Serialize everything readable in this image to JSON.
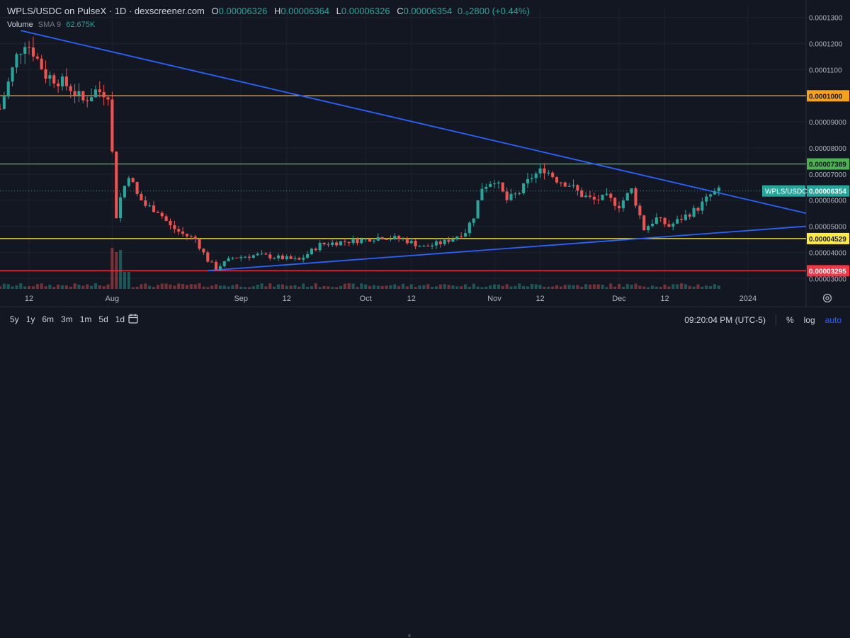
{
  "header": {
    "symbol": "WPLS/USDC on PulseX · 1D · dexscreener.com",
    "open_label": "O",
    "open": "0.00006326",
    "high_label": "H",
    "high": "0.00006364",
    "low_label": "L",
    "low": "0.00006326",
    "close_label": "C",
    "close": "0.00006354",
    "change": "0.₀2800 (+0.44%)"
  },
  "volume_legend": {
    "label": "Volume",
    "sma": "SMA 9",
    "value": "62.675K"
  },
  "price_tag": {
    "label": "WPLS/USDC",
    "value": "0.00006354",
    "color": "#26a69a"
  },
  "bottom_bar": {
    "ranges": [
      "5y",
      "1y",
      "6m",
      "3m",
      "1m",
      "5d",
      "1d"
    ],
    "time": "09:20:04 PM (UTC-5)",
    "percent": "%",
    "log": "log",
    "auto": "auto"
  },
  "colors": {
    "up": "#26a69a",
    "down": "#ef5350",
    "trendline": "#2962ff",
    "background": "#131722"
  },
  "chart_data": {
    "type": "candlestick",
    "title": "WPLS/USDC on PulseX · 1D · dexscreener.com",
    "y_ticks": [
      "0.0001300",
      "0.0001200",
      "0.0001100",
      "0.0001000",
      "0.00009000",
      "0.00008000",
      "0.00007000",
      "0.00006000",
      "0.00005000",
      "0.00004000",
      "0.00003000"
    ],
    "ylim": [
      2.6e-05,
      0.000134
    ],
    "x_ticks": [
      "12",
      "Aug",
      "12",
      "Sep",
      "12",
      "Oct",
      "12",
      "Nov",
      "12",
      "Dec",
      "12",
      "2024"
    ],
    "xlim": [
      "2023-07-05",
      "2024-01-15"
    ],
    "horizontal_levels": [
      {
        "value": 0.0001,
        "label": "0.0001000",
        "color": "#f7a21b"
      },
      {
        "value": 7.389e-05,
        "label": "0.00007389",
        "color": "#4caf50"
      },
      {
        "value": 4.529e-05,
        "label": "0.00004529",
        "color": "#ffeb3b"
      },
      {
        "value": 3.295e-05,
        "label": "0.00003295",
        "color": "#f23645"
      }
    ],
    "trendlines": [
      {
        "start": [
          "2023-07-10",
          0.000125
        ],
        "end": [
          "2024-01-15",
          5.5e-05
        ],
        "color": "#2962ff"
      },
      {
        "start": [
          "2023-08-24",
          3.3e-05
        ],
        "end": [
          "2024-01-15",
          5e-05
        ],
        "color": "#2962ff"
      }
    ],
    "anchors": [
      [
        "2023-07-05",
        9.5e-05
      ],
      [
        "2023-07-07",
        0.000105
      ],
      [
        "2023-07-09",
        0.000115
      ],
      [
        "2023-07-11",
        0.000121
      ],
      [
        "2023-07-13",
        0.000117
      ],
      [
        "2023-07-16",
        0.000108
      ],
      [
        "2023-07-19",
        0.000106
      ],
      [
        "2023-07-22",
        0.000103
      ],
      [
        "2023-07-25",
        9.8e-05
      ],
      [
        "2023-07-28",
        0.000102
      ],
      [
        "2023-07-31",
        0.000101
      ],
      [
        "2023-08-01",
        7.8e-05
      ],
      [
        "2023-08-02",
        5.4e-05
      ],
      [
        "2023-08-03",
        6.1e-05
      ],
      [
        "2023-08-05",
        7e-05
      ],
      [
        "2023-08-07",
        6.2e-05
      ],
      [
        "2023-08-09",
        5.8e-05
      ],
      [
        "2023-08-12",
        5.6e-05
      ],
      [
        "2023-08-15",
        5e-05
      ],
      [
        "2023-08-18",
        4.7e-05
      ],
      [
        "2023-08-21",
        4.5e-05
      ],
      [
        "2023-08-24",
        3.7e-05
      ],
      [
        "2023-08-26",
        3.4e-05
      ],
      [
        "2023-08-30",
        3.8e-05
      ],
      [
        "2023-09-05",
        3.9e-05
      ],
      [
        "2023-09-10",
        3.8e-05
      ],
      [
        "2023-09-15",
        3.7e-05
      ],
      [
        "2023-09-20",
        4.3e-05
      ],
      [
        "2023-09-25",
        4.4e-05
      ],
      [
        "2023-10-01",
        4.5e-05
      ],
      [
        "2023-10-05",
        4.6e-05
      ],
      [
        "2023-10-10",
        4.5e-05
      ],
      [
        "2023-10-15",
        4.2e-05
      ],
      [
        "2023-10-20",
        4.4e-05
      ],
      [
        "2023-10-25",
        4.8e-05
      ],
      [
        "2023-10-27",
        5.4e-05
      ],
      [
        "2023-10-29",
        6.5e-05
      ],
      [
        "2023-11-01",
        6.8e-05
      ],
      [
        "2023-11-04",
        6e-05
      ],
      [
        "2023-11-07",
        6.3e-05
      ],
      [
        "2023-11-10",
        6.9e-05
      ],
      [
        "2023-11-13",
        7.2e-05
      ],
      [
        "2023-11-16",
        6.8e-05
      ],
      [
        "2023-11-19",
        6.6e-05
      ],
      [
        "2023-11-22",
        6.2e-05
      ],
      [
        "2023-11-25",
        6e-05
      ],
      [
        "2023-11-28",
        6.1e-05
      ],
      [
        "2023-12-01",
        5.8e-05
      ],
      [
        "2023-12-04",
        6.4e-05
      ],
      [
        "2023-12-07",
        4.9e-05
      ],
      [
        "2023-12-10",
        5.3e-05
      ],
      [
        "2023-12-13",
        5e-05
      ],
      [
        "2023-12-17",
        5.4e-05
      ],
      [
        "2023-12-20",
        5.7e-05
      ],
      [
        "2023-12-23",
        6.2e-05
      ],
      [
        "2023-12-25",
        6.35e-05
      ]
    ]
  }
}
